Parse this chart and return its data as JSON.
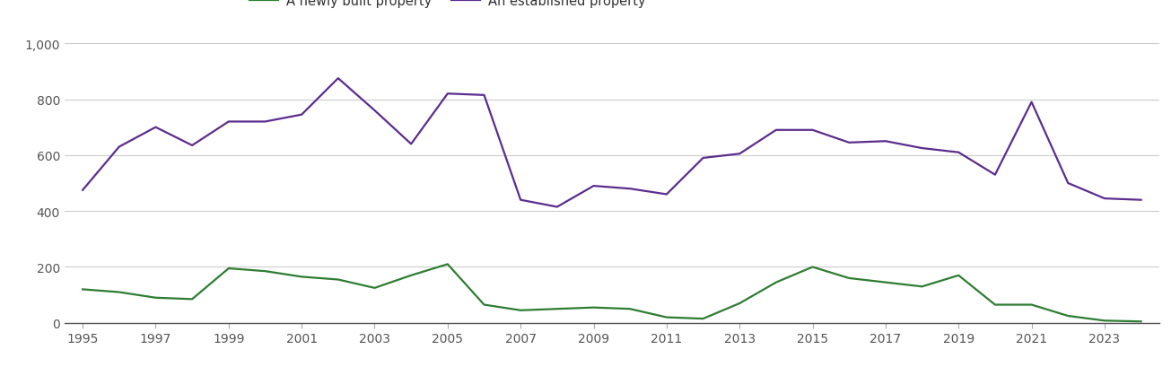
{
  "years": [
    1995,
    1996,
    1997,
    1998,
    1999,
    2000,
    2001,
    2002,
    2003,
    2004,
    2005,
    2006,
    2007,
    2008,
    2009,
    2010,
    2011,
    2012,
    2013,
    2014,
    2015,
    2016,
    2017,
    2018,
    2019,
    2020,
    2021,
    2022,
    2023,
    2024
  ],
  "new_homes": [
    120,
    110,
    90,
    85,
    195,
    185,
    165,
    155,
    125,
    170,
    210,
    65,
    45,
    50,
    55,
    50,
    20,
    15,
    70,
    145,
    200,
    160,
    145,
    130,
    170,
    65,
    65,
    25,
    8,
    5
  ],
  "established_homes": [
    475,
    630,
    700,
    635,
    720,
    720,
    745,
    875,
    760,
    640,
    820,
    815,
    440,
    415,
    490,
    480,
    460,
    590,
    605,
    690,
    690,
    645,
    650,
    625,
    610,
    530,
    790,
    500,
    445,
    440
  ],
  "new_color": "#2e7d32",
  "established_color": "#5b2d8e",
  "legend_new": "A newly built property",
  "legend_established": "An established property",
  "ylim": [
    0,
    1000
  ],
  "yticks": [
    0,
    200,
    400,
    600,
    800,
    1000
  ],
  "ytick_labels": [
    "0",
    "200",
    "400",
    "600",
    "800",
    "1,000"
  ],
  "xtick_years": [
    1995,
    1997,
    1999,
    2001,
    2003,
    2005,
    2007,
    2009,
    2011,
    2013,
    2015,
    2017,
    2019,
    2021,
    2023
  ],
  "background_color": "#ffffff",
  "grid_color": "#cccccc",
  "line_width": 1.6,
  "legend_fontsize": 10.5,
  "tick_fontsize": 10,
  "tick_color": "#555555"
}
